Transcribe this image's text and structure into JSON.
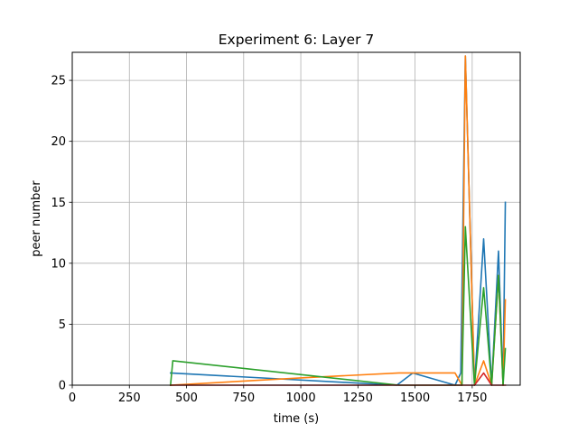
{
  "chart_data": {
    "type": "line",
    "title": "Experiment 6: Layer 7",
    "xlabel": "time (s)",
    "ylabel": "peer number",
    "xlim": [
      0,
      1960
    ],
    "ylim": [
      0,
      27.3
    ],
    "xticks": [
      0,
      250,
      500,
      750,
      1000,
      1250,
      1500,
      1750
    ],
    "yticks": [
      0,
      5,
      10,
      15,
      20,
      25
    ],
    "grid": true,
    "legend": "none",
    "series": [
      {
        "color": "#1f77b4",
        "x": [
          430,
          1420,
          1490,
          1675,
          1700,
          1720,
          1760,
          1800,
          1835,
          1865,
          1885,
          1895
        ],
        "y": [
          1,
          0,
          1,
          0,
          1,
          27,
          0,
          12,
          0,
          11,
          0,
          15
        ]
      },
      {
        "color": "#ff7f0e",
        "x": [
          430,
          1000,
          1430,
          1675,
          1705,
          1720,
          1760,
          1800,
          1835,
          1865,
          1885,
          1895
        ],
        "y": [
          0,
          0.6,
          1,
          1,
          0,
          27,
          0,
          2,
          0,
          9,
          0,
          7
        ]
      },
      {
        "color": "#2ca02c",
        "x": [
          430,
          440,
          1430,
          1705,
          1720,
          1760,
          1800,
          1835,
          1865,
          1885,
          1895
        ],
        "y": [
          0,
          2,
          0,
          0,
          13,
          0,
          8,
          0,
          9,
          0,
          3
        ]
      },
      {
        "color": "#d62728",
        "x": [
          430,
          1700,
          1760,
          1800,
          1835,
          1865,
          1885,
          1895
        ],
        "y": [
          0,
          0,
          0,
          1,
          0,
          0,
          0,
          0
        ]
      }
    ]
  }
}
